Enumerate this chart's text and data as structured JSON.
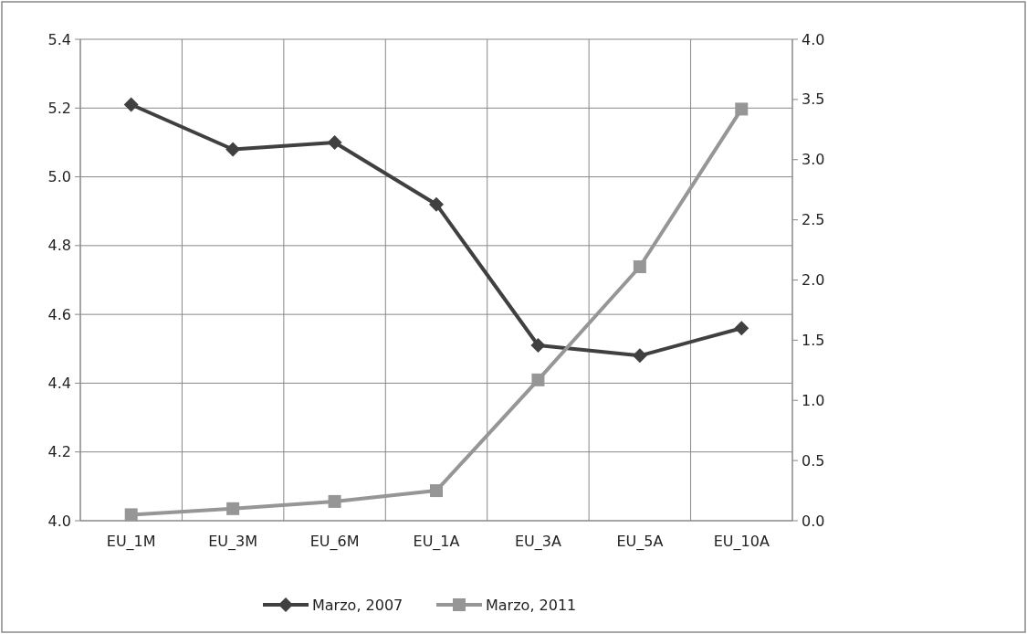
{
  "chart_data": {
    "type": "line",
    "categories": [
      "EU_1M",
      "EU_3M",
      "EU_6M",
      "EU_1A",
      "EU_3A",
      "EU_5A",
      "EU_10A"
    ],
    "series": [
      {
        "name": "Marzo, 2007",
        "color": "#404040",
        "marker": "diamond",
        "values": [
          5.21,
          5.08,
          5.1,
          4.92,
          4.51,
          4.48,
          4.56
        ]
      },
      {
        "name": "Marzo, 2011",
        "color": "#969696",
        "marker": "square",
        "axis": "y2",
        "values": [
          0.05,
          0.1,
          0.16,
          0.25,
          1.17,
          2.11,
          3.42
        ]
      }
    ],
    "ylim": [
      4.0,
      5.4
    ],
    "yticks": [
      {
        "value": 4.0,
        "label": "4.0"
      },
      {
        "value": 4.2,
        "label": "4.2"
      },
      {
        "value": 4.4,
        "label": "4.4"
      },
      {
        "value": 4.6,
        "label": "4.6"
      },
      {
        "value": 4.8,
        "label": "4.8"
      },
      {
        "value": 5.0,
        "label": "5.0"
      },
      {
        "value": 5.2,
        "label": "5.2"
      },
      {
        "value": 5.4,
        "label": "5.4"
      }
    ],
    "y2lim": [
      0,
      4
    ],
    "y2ticks": [
      {
        "value": 0,
        "label": "0.0"
      },
      {
        "value": 0.5,
        "label": "0.5"
      },
      {
        "value": 1,
        "label": "1.0"
      },
      {
        "value": 1.5,
        "label": "1.5"
      },
      {
        "value": 2,
        "label": "2.0"
      },
      {
        "value": 2.5,
        "label": "2.5"
      },
      {
        "value": 3,
        "label": "3.0"
      },
      {
        "value": 3.5,
        "label": "3.5"
      },
      {
        "value": 4,
        "label": "4.0"
      }
    ],
    "grid": true,
    "legend": "bottom",
    "line_style": "solid"
  }
}
